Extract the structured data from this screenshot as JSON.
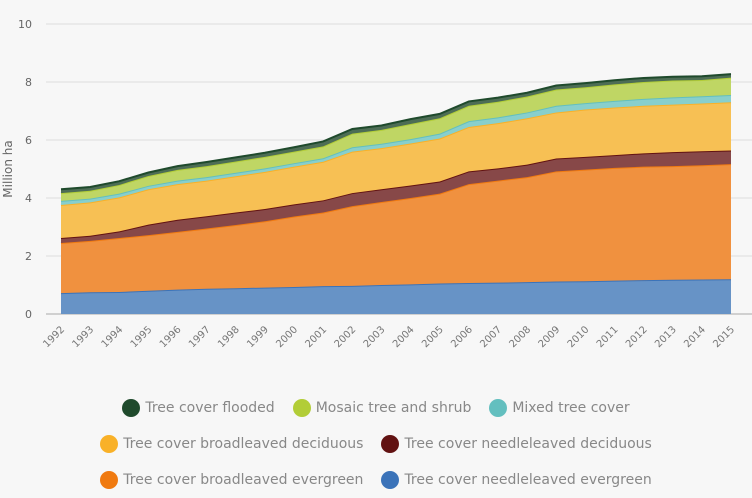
{
  "chart_data": {
    "type": "area",
    "stacked": true,
    "title": "",
    "xlabel": "",
    "ylabel": "Million ha",
    "ylim": [
      0,
      10
    ],
    "yticks": [
      0,
      2,
      4,
      6,
      8,
      10
    ],
    "grid": true,
    "legend_position": "bottom",
    "x": [
      "1992",
      "1993",
      "1994",
      "1995",
      "1996",
      "1997",
      "1998",
      "1999",
      "2000",
      "2001",
      "2002",
      "2003",
      "2004",
      "2005",
      "2006",
      "2007",
      "2008",
      "2009",
      "2010",
      "2011",
      "2012",
      "2013",
      "2014",
      "2015"
    ],
    "series": [
      {
        "name": "Tree cover needleleaved evergreen",
        "color": "#3b73b9",
        "fill": "#6793c6",
        "values": [
          0.72,
          0.75,
          0.76,
          0.8,
          0.84,
          0.87,
          0.89,
          0.91,
          0.93,
          0.96,
          0.97,
          1.0,
          1.02,
          1.05,
          1.07,
          1.08,
          1.1,
          1.12,
          1.13,
          1.15,
          1.17,
          1.18,
          1.19,
          1.2
        ]
      },
      {
        "name": "Tree cover broadleaved evergreen",
        "color": "#f07a10",
        "fill": "#f0913f",
        "values": [
          1.73,
          1.77,
          1.86,
          1.92,
          1.99,
          2.08,
          2.18,
          2.29,
          2.43,
          2.54,
          2.75,
          2.86,
          2.98,
          3.1,
          3.41,
          3.52,
          3.62,
          3.8,
          3.85,
          3.89,
          3.91,
          3.92,
          3.94,
          3.97
        ]
      },
      {
        "name": "Tree cover needleleaved deciduous",
        "color": "#621212",
        "fill": "#874848",
        "values": [
          0.17,
          0.18,
          0.23,
          0.36,
          0.42,
          0.42,
          0.43,
          0.42,
          0.42,
          0.42,
          0.45,
          0.44,
          0.43,
          0.42,
          0.44,
          0.42,
          0.43,
          0.44,
          0.44,
          0.44,
          0.46,
          0.48,
          0.48,
          0.47
        ]
      },
      {
        "name": "Tree cover broadleaved deciduous",
        "color": "#f9b128",
        "fill": "#f7c054",
        "values": [
          1.14,
          1.15,
          1.17,
          1.22,
          1.23,
          1.23,
          1.25,
          1.28,
          1.3,
          1.33,
          1.43,
          1.42,
          1.45,
          1.48,
          1.53,
          1.56,
          1.6,
          1.59,
          1.63,
          1.64,
          1.64,
          1.64,
          1.65,
          1.66
        ]
      },
      {
        "name": "Mixed tree cover",
        "color": "#63bfbf",
        "fill": "#88cfcc",
        "values": [
          0.14,
          0.13,
          0.13,
          0.12,
          0.12,
          0.12,
          0.12,
          0.12,
          0.12,
          0.12,
          0.15,
          0.15,
          0.15,
          0.17,
          0.2,
          0.2,
          0.2,
          0.23,
          0.22,
          0.23,
          0.24,
          0.25,
          0.25,
          0.25
        ]
      },
      {
        "name": "Mosaic tree and shrub",
        "color": "#b2cd37",
        "fill": "#bfd664",
        "values": [
          0.27,
          0.27,
          0.3,
          0.34,
          0.37,
          0.38,
          0.39,
          0.4,
          0.4,
          0.41,
          0.47,
          0.48,
          0.52,
          0.53,
          0.53,
          0.54,
          0.55,
          0.56,
          0.55,
          0.57,
          0.58,
          0.58,
          0.56,
          0.6
        ]
      },
      {
        "name": "Tree cover flooded",
        "color": "#1f4a2c",
        "fill": "#4d6d55",
        "values": [
          0.13,
          0.13,
          0.13,
          0.12,
          0.13,
          0.14,
          0.14,
          0.14,
          0.15,
          0.17,
          0.16,
          0.15,
          0.17,
          0.15,
          0.15,
          0.14,
          0.13,
          0.14,
          0.14,
          0.14,
          0.14,
          0.13,
          0.13,
          0.12
        ]
      }
    ]
  },
  "legend": {
    "rows": [
      [
        {
          "label": "Tree cover flooded",
          "color": "#1f4a2c"
        },
        {
          "label": "Mosaic tree and shrub",
          "color": "#b2cd37"
        },
        {
          "label": "Mixed tree cover",
          "color": "#63bfbf"
        }
      ],
      [
        {
          "label": "Tree cover broadleaved deciduous",
          "color": "#f9b128"
        },
        {
          "label": "Tree cover needleleaved deciduous",
          "color": "#621212"
        }
      ],
      [
        {
          "label": "Tree cover broadleaved evergreen",
          "color": "#f07a10"
        },
        {
          "label": "Tree cover needleleaved evergreen",
          "color": "#3b73b9"
        }
      ]
    ]
  }
}
